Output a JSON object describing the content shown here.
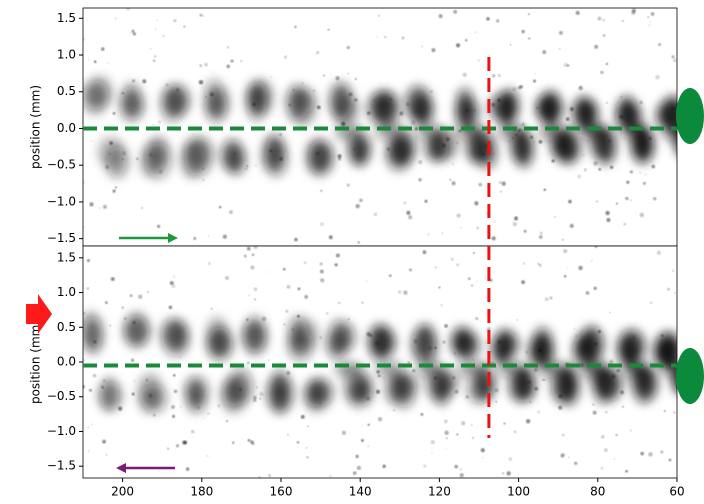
{
  "chart_data": [
    {
      "type": "image",
      "ylabel": "position (mm)",
      "xlim": [
        210,
        60
      ],
      "ylim": [
        -1.6,
        1.64
      ],
      "yticks": [
        {
          "value": 1.5,
          "label": "1.5"
        },
        {
          "value": 1.0,
          "label": "1.0"
        },
        {
          "value": 0.5,
          "label": "0.5"
        },
        {
          "value": 0.0,
          "label": "0.0"
        },
        {
          "value": -0.5,
          "label": "−0.5"
        },
        {
          "value": -1.0,
          "label": "−1.0"
        },
        {
          "value": -1.5,
          "label": "−1.5"
        }
      ],
      "hline": 0,
      "hline_color": "#1a8a3a",
      "vline": 107.5,
      "vline_color": "#ee1111"
    },
    {
      "type": "image",
      "ylabel": "position (mm)",
      "xlim": [
        210,
        60
      ],
      "ylim": [
        -1.67,
        1.67
      ],
      "yticks": [
        {
          "value": 1.5,
          "label": "1.5"
        },
        {
          "value": 1.0,
          "label": "1.0"
        },
        {
          "value": 0.5,
          "label": "0.5"
        },
        {
          "value": 0.0,
          "label": "0.0"
        },
        {
          "value": -0.5,
          "label": "−0.5"
        },
        {
          "value": -1.0,
          "label": "−1.0"
        },
        {
          "value": -1.5,
          "label": "−1.5"
        }
      ],
      "xticks": [
        200,
        180,
        160,
        140,
        120,
        100,
        80,
        60
      ],
      "hline": -0.05,
      "hline_color": "#1a8a3a",
      "vline": 107.5,
      "vline_color": "#ee1111"
    }
  ]
}
